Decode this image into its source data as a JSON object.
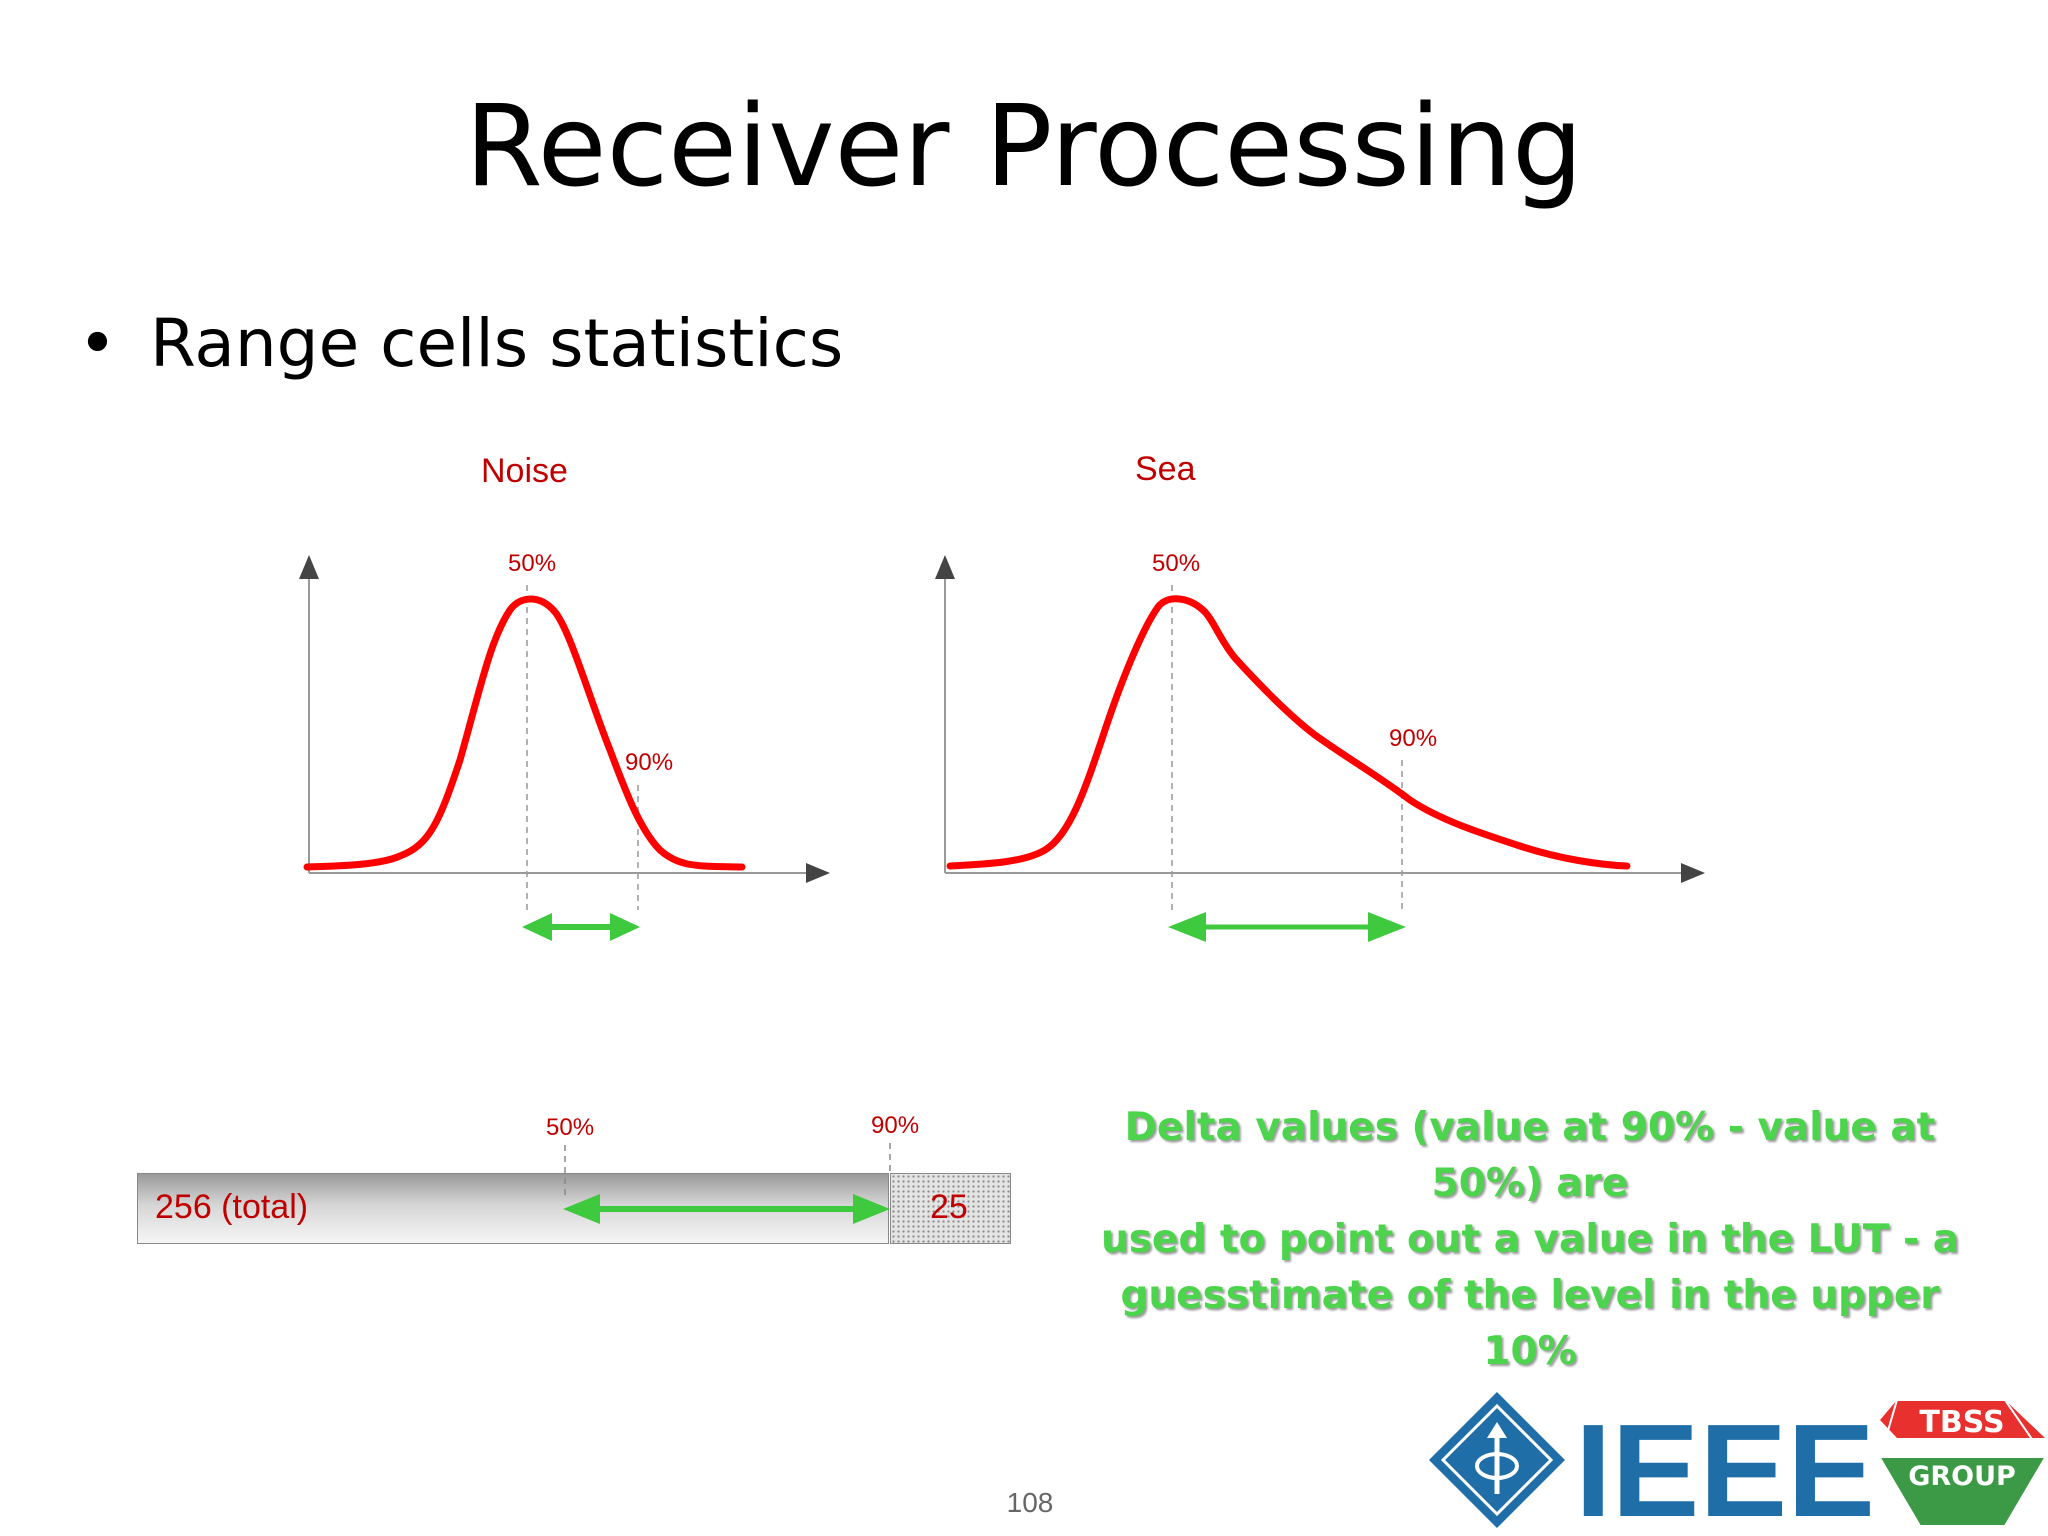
{
  "slide": {
    "title": "Receiver Processing",
    "bullet": "Range cells statistics",
    "page_number": "108"
  },
  "noise_chart": {
    "title": "Noise",
    "p50_label": "50%",
    "p90_label": "90%"
  },
  "sea_chart": {
    "title": "Sea",
    "p50_label": "50%",
    "p90_label": "90%"
  },
  "bar": {
    "total_label": "256 (total)",
    "tail_label": "25",
    "p50_label": "50%",
    "p90_label": "90%"
  },
  "delta_text": {
    "line1": "Delta values (value at 90% - value at 50%) are",
    "line2": "used to point out a value in the LUT - a",
    "line3": "guesstimate of the level in the upper 10%"
  },
  "logo": {
    "ieee_text": "IEEE",
    "badge_line1": "TBSS",
    "badge_line2": "GROUP"
  },
  "colors": {
    "curve": "#ff0000",
    "label": "#c00000",
    "arrow": "#3ec93e",
    "logo_blue": "#1f6ea8",
    "badge_red": "#e8312f",
    "badge_green": "#3c9a46"
  }
}
